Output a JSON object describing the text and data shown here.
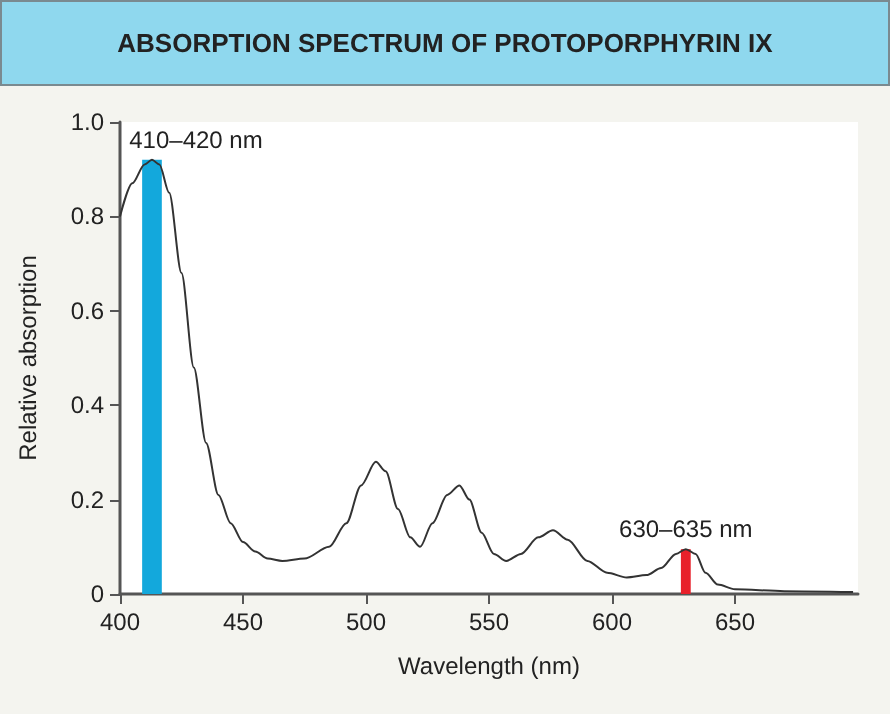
{
  "chart_data": {
    "type": "line",
    "title": "ABSORPTION SPECTRUM OF PROTOPORPHYRIN IX",
    "xlabel": "Wavelength (nm)",
    "ylabel": "Relative absorption",
    "x": [
      400,
      405,
      410,
      413,
      416,
      420,
      425,
      430,
      435,
      440,
      445,
      450,
      455,
      460,
      466,
      475,
      485,
      492,
      498,
      504,
      508,
      513,
      518,
      522,
      527,
      533,
      538,
      542,
      547,
      552,
      557,
      563,
      570,
      576,
      582,
      590,
      598,
      606,
      614,
      620,
      626,
      630,
      634,
      638,
      643,
      650,
      670,
      698
    ],
    "series": [
      {
        "color": "#333333",
        "values": [
          0.8,
          0.87,
          0.91,
          0.92,
          0.91,
          0.85,
          0.68,
          0.48,
          0.32,
          0.21,
          0.15,
          0.11,
          0.09,
          0.075,
          0.07,
          0.075,
          0.1,
          0.15,
          0.23,
          0.28,
          0.26,
          0.18,
          0.12,
          0.1,
          0.15,
          0.21,
          0.23,
          0.2,
          0.13,
          0.085,
          0.07,
          0.085,
          0.12,
          0.135,
          0.115,
          0.07,
          0.045,
          0.035,
          0.04,
          0.055,
          0.085,
          0.095,
          0.085,
          0.045,
          0.02,
          0.01,
          0.006,
          0.004
        ]
      }
    ],
    "bands": [
      {
        "axis": "x",
        "from": 409,
        "to": 417,
        "label": "410–420 nm",
        "color": "#13a8dc"
      },
      {
        "axis": "x",
        "from": 628,
        "to": 632,
        "label": "630–635 nm",
        "color": "#e8202a"
      }
    ],
    "xlim": [
      400,
      700
    ],
    "xticks": [
      400,
      450,
      500,
      550,
      600,
      650
    ],
    "ylim": [
      0,
      1
    ],
    "yticks": [
      0,
      0.2,
      0.4,
      0.6,
      0.8,
      {
        "value": 1,
        "label": "1.0"
      }
    ],
    "marker": "none",
    "line_style": "solid"
  }
}
